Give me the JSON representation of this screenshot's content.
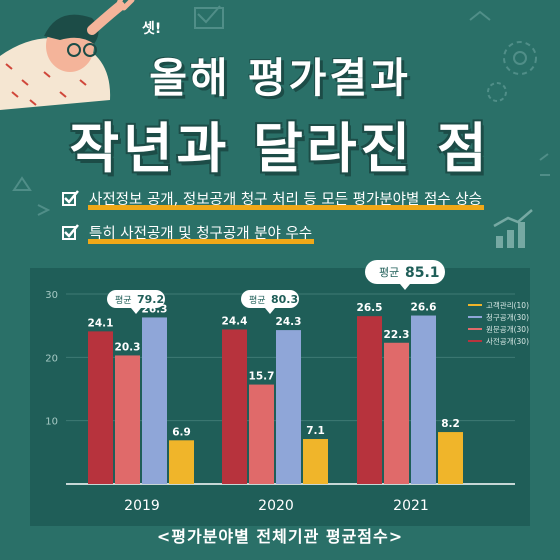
{
  "header": {
    "exclaim": "셋!",
    "title_line1": "올해 평가결과",
    "title_line2": "작년과 달라진 점"
  },
  "bullets": [
    "사전정보 공개, 정보공개 청구 처리 등 모든 평가분야별 점수 상승",
    "특히 사전공개 및 청구공개 분야 우수"
  ],
  "caption": "<평가분야별 전체기관 평균점수>",
  "colors": {
    "background": "#2a7068",
    "panel": "#1f5e58",
    "highlight": "#f0a818"
  },
  "chart_data": {
    "type": "bar",
    "categories": [
      "2019",
      "2020",
      "2021"
    ],
    "ylim": [
      0,
      30
    ],
    "yticks": [
      10,
      20,
      30
    ],
    "grid": true,
    "legend_position": "top-right",
    "series": [
      {
        "name": "사전공개(30)",
        "color": "#b7333d",
        "values": [
          24.1,
          24.4,
          26.5
        ]
      },
      {
        "name": "원문공개(30)",
        "color": "#e06a6a",
        "values": [
          20.3,
          15.7,
          22.3
        ]
      },
      {
        "name": "청구공개(30)",
        "color": "#8fa6d8",
        "values": [
          26.3,
          24.3,
          26.6
        ]
      },
      {
        "name": "고객관리(10)",
        "color": "#f0b52a",
        "values": [
          6.9,
          7.1,
          8.2
        ]
      }
    ],
    "legend_order": [
      "고객관리(10)",
      "청구공개(30)",
      "원문공개(30)",
      "사전공개(30)"
    ],
    "averages": [
      {
        "label": "평균",
        "value": "79.2"
      },
      {
        "label": "평균",
        "value": "80.3"
      },
      {
        "label": "평균",
        "value": "85.1"
      }
    ]
  }
}
